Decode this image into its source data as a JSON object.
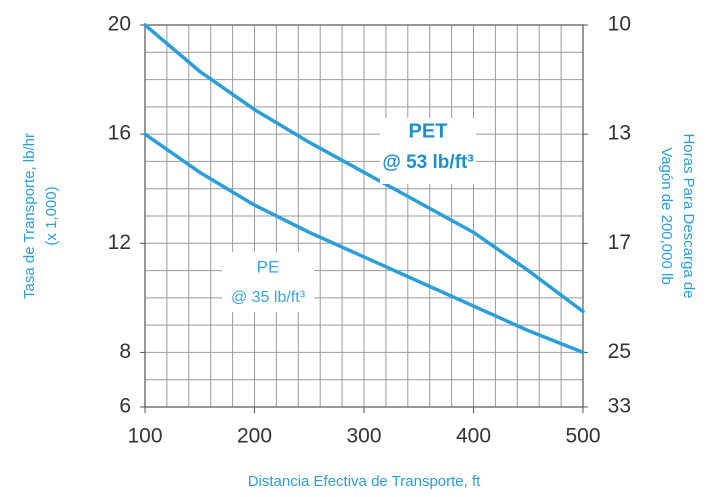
{
  "chart_data": {
    "type": "line",
    "x": [
      100,
      150,
      200,
      250,
      300,
      350,
      400,
      450,
      500
    ],
    "series": [
      {
        "name": "PET",
        "color": "#2a9ed8",
        "values": [
          20,
          18.3,
          16.9,
          15.7,
          14.6,
          13.5,
          12.4,
          11,
          9.5
        ]
      },
      {
        "name": "PE",
        "color": "#2a9ed8",
        "values": [
          16,
          14.6,
          13.4,
          12.4,
          11.5,
          10.6,
          9.7,
          8.8,
          8
        ]
      }
    ],
    "annotations": [
      "PET",
      "@ 53 lb/ft³",
      "PE",
      "@ 35 lb/ft³"
    ],
    "xlabel": "Distancia Efectiva de Transporte, ft",
    "ylabel": [
      "Tasa de Transporte, lb/hr",
      "(x 1,000)"
    ],
    "y2label": [
      "Horas Para Descarga de",
      "Vagón de 200,000 lb"
    ],
    "xlim": [
      100,
      500
    ],
    "xticks": [
      100,
      200,
      300,
      400,
      500
    ],
    "ylim": [
      6,
      20
    ],
    "yticks": [
      6,
      8,
      12,
      16,
      20
    ],
    "y2lim": [
      10,
      33.33
    ],
    "y2scale": "reciprocal",
    "y2ticks": [
      10,
      {
        "value": 12.5,
        "label": "13"
      },
      {
        "value": 16.67,
        "label": "17"
      },
      25,
      {
        "value": 33.33,
        "label": "33"
      }
    ],
    "grid": true,
    "xgrid_step": 20,
    "ygrid_step": 1
  }
}
